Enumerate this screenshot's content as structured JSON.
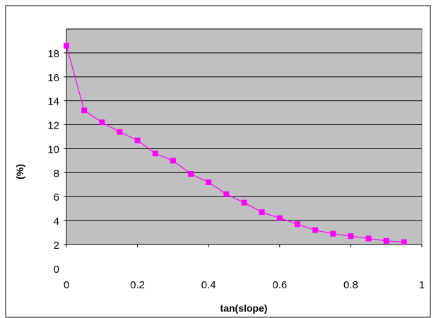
{
  "chart_data": {
    "type": "line",
    "title": "",
    "xlabel": "tan(slope)",
    "ylabel": "(%)",
    "xlim": [
      0,
      1
    ],
    "ylim": [
      2,
      20
    ],
    "x_ticks": [
      "0",
      "0.2",
      "0.4",
      "0.6",
      "0.8",
      "1"
    ],
    "x_tick_values": [
      0,
      0.2,
      0.4,
      0.6,
      0.8,
      1
    ],
    "y_ticks": [
      "0",
      "2",
      "4",
      "6",
      "8",
      "10",
      "12",
      "14",
      "16",
      "18"
    ],
    "grid": true,
    "legend": "none",
    "colors": {
      "series": "#ff00ff",
      "plot_background": "#c0c0c0",
      "gridline": "#000000"
    },
    "series": [
      {
        "x": [
          0,
          0.05,
          0.1,
          0.15,
          0.2,
          0.25,
          0.3,
          0.35,
          0.4,
          0.45,
          0.5,
          0.55,
          0.6,
          0.65,
          0.7,
          0.75,
          0.8,
          0.85,
          0.9,
          0.95
        ],
        "values": [
          18.6,
          13.2,
          12.2,
          11.4,
          10.7,
          9.6,
          9.0,
          7.9,
          7.2,
          6.2,
          5.5,
          4.7,
          4.2,
          3.7,
          3.2,
          2.9,
          2.7,
          2.5,
          2.3,
          2.2
        ]
      }
    ]
  }
}
